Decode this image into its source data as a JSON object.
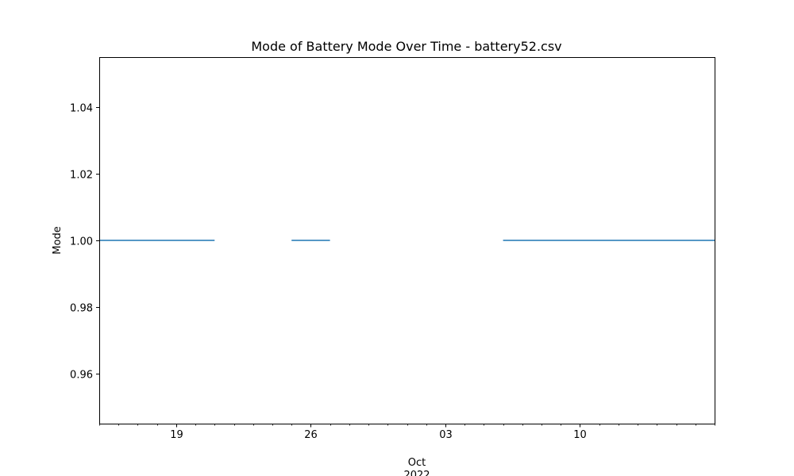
{
  "chart_data": {
    "type": "line",
    "title": "Mode of Battery Mode Over Time - battery52.csv",
    "xlabel": "",
    "ylabel": "Mode",
    "xlim": [
      "2022-09-15",
      "2022-10-17"
    ],
    "ylim": [
      0.945,
      1.055
    ],
    "grid": false,
    "legend": "none",
    "x_ticks": [
      {
        "date": "2022-09-19",
        "label": "19"
      },
      {
        "date": "2022-09-26",
        "label": "26"
      },
      {
        "date": "2022-10-03",
        "label": "03"
      },
      {
        "date": "2022-10-10",
        "label": "10"
      }
    ],
    "x_secondary_labels": [
      "Oct",
      "2022"
    ],
    "y_ticks": [
      0.96,
      0.98,
      1.0,
      1.02,
      1.04
    ],
    "y_tick_labels": [
      "0.96",
      "0.98",
      "1.00",
      "1.02",
      "1.04"
    ],
    "series": [
      {
        "color": "#1f77b4",
        "segments": [
          {
            "x": [
              "2022-09-15",
              "2022-09-21"
            ],
            "y": [
              1.0,
              1.0
            ]
          },
          {
            "x": [
              "2022-09-25",
              "2022-09-27"
            ],
            "y": [
              1.0,
              1.0
            ]
          },
          {
            "x": [
              "2022-10-06",
              "2022-10-17"
            ],
            "y": [
              1.0,
              1.0
            ]
          }
        ]
      }
    ]
  }
}
